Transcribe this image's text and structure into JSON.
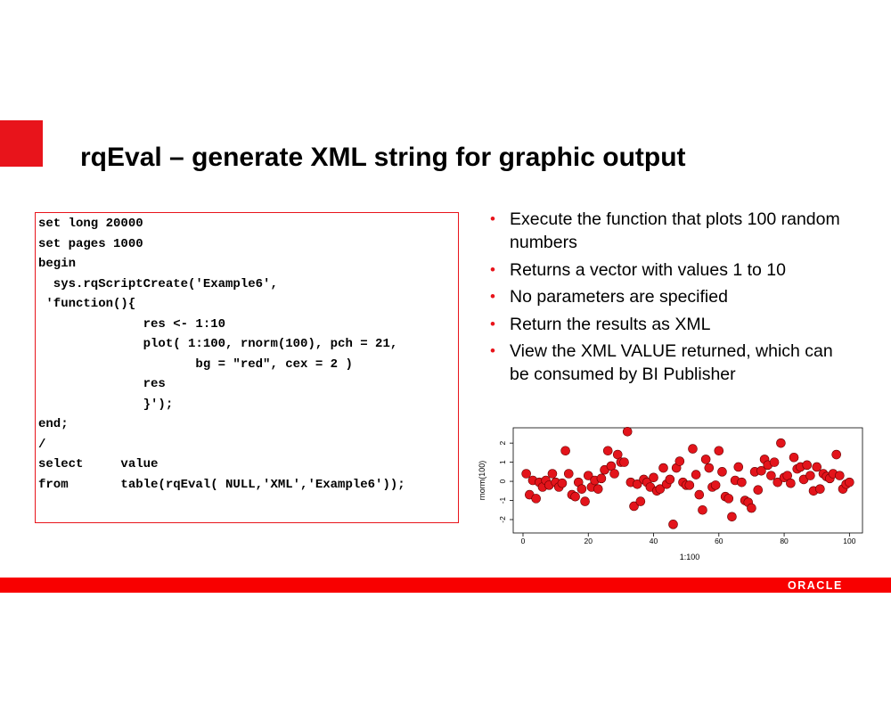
{
  "slide": {
    "title": "rqEval – generate XML string for graphic output",
    "code": [
      "set long 20000",
      "set pages 1000",
      "begin",
      "  sys.rqScriptCreate('Example6',",
      " 'function(){",
      "              res <- 1:10",
      "              plot( 1:100, rnorm(100), pch = 21,",
      "                     bg = \"red\", cex = 2 )",
      "              res",
      "              }');",
      "end;",
      "/",
      "select     value",
      "from       table(rqEval( NULL,'XML','Example6'));"
    ],
    "bullets": [
      "Execute the function that plots 100 random numbers",
      "Returns a vector with values 1 to 10",
      "No parameters are specified",
      "Return the results as XML",
      "View the XML VALUE returned, which can be consumed by BI Publisher"
    ],
    "logo": "ORACLE"
  },
  "chart_data": {
    "type": "scatter",
    "x_label": "1:100",
    "y_label": "rnorm(100)",
    "color": "#e3141b",
    "x": [
      1,
      2,
      3,
      4,
      5,
      6,
      7,
      8,
      9,
      10,
      11,
      12,
      13,
      14,
      15,
      16,
      17,
      18,
      19,
      20,
      21,
      22,
      23,
      24,
      25,
      26,
      27,
      28,
      29,
      30,
      31,
      32,
      33,
      34,
      35,
      36,
      37,
      38,
      39,
      40,
      41,
      42,
      43,
      44,
      45,
      46,
      47,
      48,
      49,
      50,
      51,
      52,
      53,
      54,
      55,
      56,
      57,
      58,
      59,
      60,
      61,
      62,
      63,
      64,
      65,
      66,
      67,
      68,
      69,
      70,
      71,
      72,
      73,
      74,
      75,
      76,
      77,
      78,
      79,
      80,
      81,
      82,
      83,
      84,
      85,
      86,
      87,
      88,
      89,
      90,
      91,
      92,
      93,
      94,
      95,
      96,
      97,
      98,
      99,
      100
    ],
    "values": [
      0.4,
      -0.7,
      0.05,
      -0.9,
      -0.05,
      -0.3,
      0.05,
      -0.2,
      0.4,
      -0.05,
      -0.3,
      -0.1,
      1.6,
      0.4,
      -0.7,
      -0.8,
      -0.05,
      -0.4,
      -1.05,
      0.3,
      -0.3,
      0.05,
      -0.4,
      0.15,
      0.6,
      1.6,
      0.8,
      0.4,
      1.4,
      1.0,
      1.0,
      2.6,
      -0.05,
      -1.3,
      -0.15,
      -1.05,
      0.1,
      -0.05,
      -0.3,
      0.2,
      -0.5,
      -0.4,
      0.7,
      -0.15,
      0.1,
      -2.25,
      0.7,
      1.05,
      -0.05,
      -0.2,
      -0.2,
      1.7,
      0.35,
      -0.7,
      -1.5,
      1.15,
      0.7,
      -0.3,
      -0.2,
      1.6,
      0.5,
      -0.8,
      -0.9,
      -1.85,
      0.05,
      0.75,
      -0.05,
      -1.0,
      -1.1,
      -1.4,
      0.5,
      -0.45,
      0.55,
      1.15,
      0.85,
      0.3,
      1.0,
      -0.05,
      2.0,
      0.2,
      0.3,
      -0.1,
      1.25,
      0.65,
      0.75,
      0.1,
      0.85,
      0.3,
      -0.5,
      0.75,
      -0.4,
      0.4,
      0.25,
      0.15,
      0.4,
      1.4,
      0.3,
      -0.4,
      -0.15,
      -0.05
    ],
    "xlim": [
      -3,
      104
    ],
    "ylim": [
      -2.7,
      2.8
    ],
    "xticks": [
      0,
      20,
      40,
      60,
      80,
      100
    ],
    "yticks": [
      -2,
      -1,
      0,
      1,
      2
    ]
  }
}
